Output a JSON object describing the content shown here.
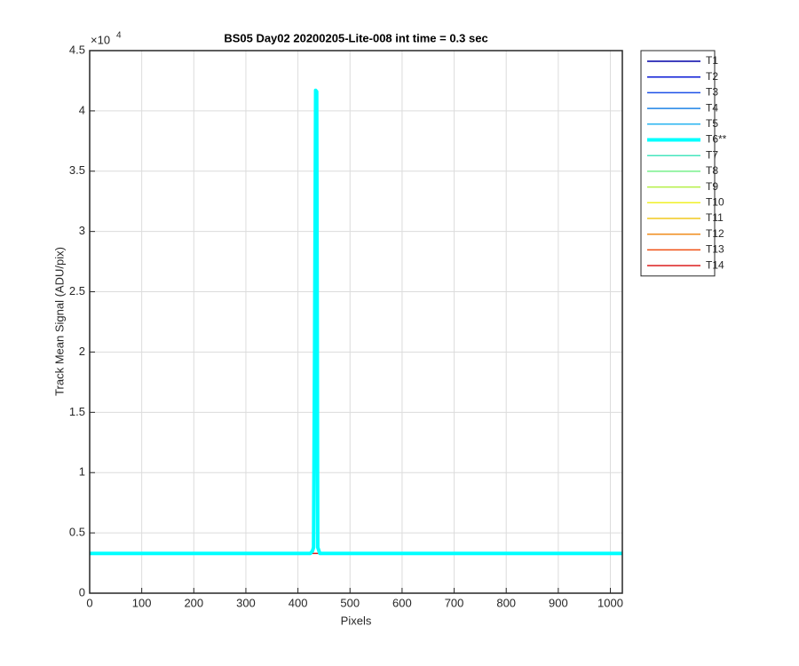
{
  "chart_data": {
    "type": "line",
    "title": "BS05 Day02 20200205-Lite-008 int time = 0.3 sec",
    "x_label": "Pixels",
    "y_label": "Track Mean Signal (ADU/pix)",
    "y_multiplier": "×10",
    "y_multiplier_exponent": "4",
    "grid": true,
    "legend": "outside-right",
    "xlim": [
      0,
      1023
    ],
    "xticks": [
      0,
      100,
      200,
      300,
      400,
      500,
      600,
      700,
      800,
      900,
      1000
    ],
    "ylim": [
      0,
      45000
    ],
    "yticks": [
      {
        "value": 0,
        "label": "0"
      },
      {
        "value": 5000,
        "label": "0.5"
      },
      {
        "value": 10000,
        "label": "1"
      },
      {
        "value": 15000,
        "label": "1.5"
      },
      {
        "value": 20000,
        "label": "2"
      },
      {
        "value": 25000,
        "label": "2.5"
      },
      {
        "value": 30000,
        "label": "3"
      },
      {
        "value": 35000,
        "label": "3.5"
      },
      {
        "value": 40000,
        "label": "4"
      },
      {
        "value": 45000,
        "label": "4.5"
      }
    ],
    "x": [
      0,
      424,
      428,
      430,
      432,
      434,
      436,
      438,
      442,
      1023
    ],
    "series": [
      {
        "name": "T1",
        "color": "#0000a8",
        "values": [
          3300,
          3300,
          3300,
          3300,
          3300,
          3300,
          3300,
          3300,
          3300,
          3300
        ]
      },
      {
        "name": "T2",
        "color": "#0a1ad6",
        "values": [
          3300,
          3300,
          3300,
          3300,
          3300,
          3300,
          3300,
          3300,
          3300,
          3300
        ]
      },
      {
        "name": "T3",
        "color": "#1e50e6",
        "values": [
          3300,
          3300,
          3300,
          3300,
          3300,
          3300,
          3300,
          3300,
          3300,
          3300
        ]
      },
      {
        "name": "T4",
        "color": "#1e82e6",
        "values": [
          3300,
          3300,
          3300,
          3300,
          3300,
          3300,
          3300,
          3300,
          3300,
          3300
        ]
      },
      {
        "name": "T5",
        "color": "#28b4f0",
        "values": [
          3300,
          3300,
          3300,
          3300,
          3300,
          3300,
          3300,
          3300,
          3300,
          3300
        ]
      },
      {
        "name": "T6**",
        "color": "#00ffff",
        "bold": true,
        "values": [
          3300,
          3300,
          3500,
          3800,
          20000,
          41700,
          41600,
          3800,
          3300,
          3300
        ]
      },
      {
        "name": "T7",
        "color": "#46e6be",
        "values": [
          3300,
          3300,
          3300,
          3300,
          3300,
          3300,
          3300,
          3300,
          3300,
          3300
        ]
      },
      {
        "name": "T8",
        "color": "#78f08c",
        "values": [
          3300,
          3300,
          3300,
          3300,
          3300,
          3300,
          3300,
          3300,
          3300,
          3300
        ]
      },
      {
        "name": "T9",
        "color": "#b4f046",
        "values": [
          3300,
          3300,
          3300,
          3300,
          3300,
          3300,
          3300,
          3300,
          3300,
          3300
        ]
      },
      {
        "name": "T10",
        "color": "#f0f028",
        "values": [
          3300,
          3300,
          3300,
          3300,
          3300,
          3300,
          3300,
          3300,
          3300,
          3300
        ]
      },
      {
        "name": "T11",
        "color": "#f0c81e",
        "values": [
          3300,
          3300,
          3300,
          3300,
          3300,
          3300,
          3300,
          3300,
          3300,
          3300
        ]
      },
      {
        "name": "T12",
        "color": "#f08c1e",
        "values": [
          3300,
          3300,
          3300,
          3300,
          3300,
          3300,
          3300,
          3300,
          3300,
          3300
        ]
      },
      {
        "name": "T13",
        "color": "#f05014",
        "values": [
          3300,
          3300,
          3300,
          3300,
          3300,
          3300,
          3300,
          3300,
          3300,
          3300
        ]
      },
      {
        "name": "T14",
        "color": "#dc1e1e",
        "values": [
          3300,
          3300,
          3300,
          3300,
          3300,
          3300,
          3300,
          3300,
          3300,
          3300
        ]
      }
    ]
  }
}
